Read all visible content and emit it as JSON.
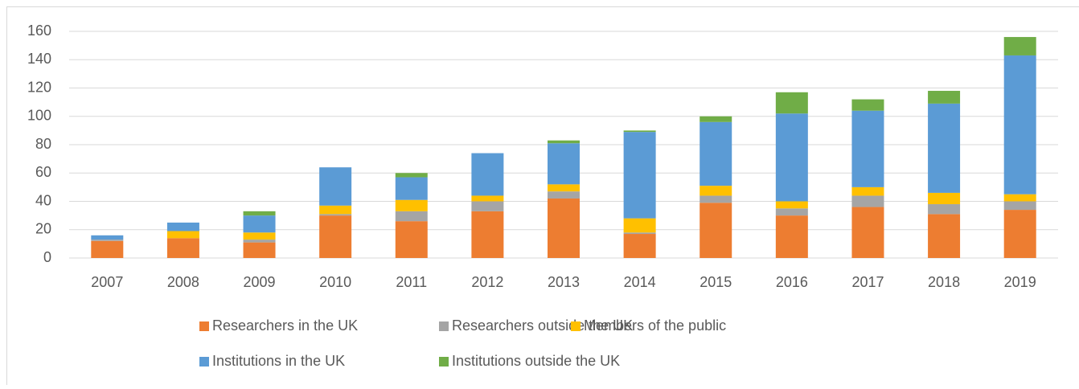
{
  "chart_data": {
    "type": "stacked_bar",
    "categories": [
      "2007",
      "2008",
      "2009",
      "2010",
      "2011",
      "2012",
      "2013",
      "2014",
      "2015",
      "2016",
      "2017",
      "2018",
      "2019"
    ],
    "series": [
      {
        "name": "Researchers in the UK",
        "color": "#ed7d31",
        "values": [
          12,
          14,
          11,
          30,
          26,
          33,
          42,
          17,
          39,
          30,
          36,
          31,
          34
        ]
      },
      {
        "name": "Researchers outside the UK",
        "color": "#a5a5a5",
        "values": [
          1,
          0,
          2,
          1,
          7,
          7,
          5,
          1,
          5,
          5,
          8,
          7,
          6
        ]
      },
      {
        "name": "Members of the public",
        "color": "#ffc000",
        "values": [
          0,
          5,
          5,
          6,
          8,
          4,
          5,
          10,
          7,
          5,
          6,
          8,
          5
        ]
      },
      {
        "name": "Institutions in the UK",
        "color": "#5b9bd5",
        "values": [
          3,
          6,
          12,
          27,
          16,
          30,
          29,
          61,
          45,
          62,
          54,
          63,
          98
        ]
      },
      {
        "name": "Institutions outside the UK",
        "color": "#70ad47",
        "values": [
          0,
          0,
          3,
          0,
          3,
          0,
          2,
          1,
          4,
          15,
          8,
          9,
          13
        ]
      }
    ],
    "ylim": [
      0,
      160
    ],
    "yticks": [
      0,
      20,
      40,
      60,
      80,
      100,
      120,
      140,
      160
    ],
    "grid": true,
    "legend": "bottom"
  }
}
